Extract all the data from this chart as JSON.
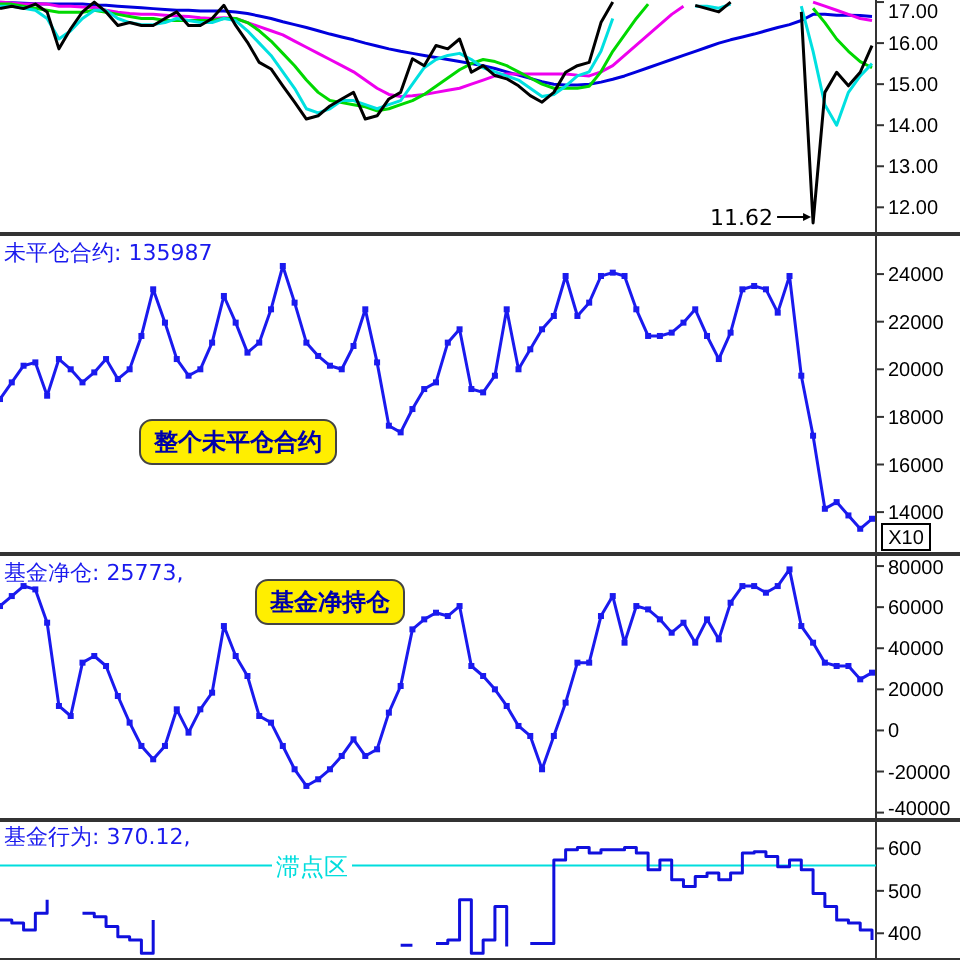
{
  "chart_data": [
    {
      "type": "line",
      "categories": [
        null,
        null,
        null,
        null,
        null,
        null,
        null,
        null,
        null,
        null,
        null,
        null,
        null,
        null,
        null,
        null,
        null,
        null,
        null,
        null,
        null,
        null,
        null,
        null,
        null,
        null,
        null,
        null,
        null,
        null,
        null,
        null,
        null,
        null,
        null,
        null,
        null,
        null,
        null,
        null,
        null,
        null,
        null,
        null,
        null,
        null,
        null,
        null,
        null,
        null,
        null,
        null,
        null,
        null,
        null,
        null,
        null,
        null,
        null,
        null,
        null,
        null,
        null,
        null,
        null,
        null,
        null,
        null,
        null,
        null,
        null,
        null,
        null,
        null,
        null
      ],
      "ylim": [
        11.35,
        17.05
      ],
      "yticks": [
        {
          "value": 12,
          "label": "12.00"
        },
        {
          "value": 13,
          "label": "13.00"
        },
        {
          "value": 14,
          "label": "14.00"
        },
        {
          "value": 15,
          "label": "15.00"
        },
        {
          "value": 16,
          "label": "16.00"
        },
        {
          "value": 17,
          "label": "17.00"
        }
      ],
      "tick_labels": "y",
      "marker": "none",
      "annotations": [
        "11.62"
      ],
      "series": [
        {
          "color": "#000000",
          "values": [
            16.84,
            16.9,
            16.84,
            16.95,
            16.76,
            15.86,
            16.35,
            16.76,
            17.0,
            16.76,
            16.43,
            16.5,
            16.43,
            16.43,
            16.6,
            16.76,
            16.43,
            16.43,
            16.6,
            16.92,
            16.43,
            16.02,
            15.53,
            15.37,
            14.96,
            14.56,
            14.15,
            14.23,
            14.47,
            14.64,
            14.8,
            14.15,
            14.23,
            14.64,
            14.8,
            15.62,
            15.45,
            15.94,
            15.86,
            16.1,
            15.29,
            15.45,
            15.21,
            15.13,
            14.96,
            14.72,
            14.56,
            14.8,
            15.29,
            15.45,
            15.53,
            16.5,
            17.0,
            null,
            null,
            null,
            null,
            null,
            null,
            16.92,
            16.84,
            16.76,
            17.0,
            null,
            null,
            null,
            null,
            null,
            16.76,
            11.62,
            14.8,
            15.29,
            14.96,
            15.29,
            15.94
          ]
        },
        {
          "color": "#00e0e0",
          "values": [
            16.9,
            16.9,
            16.85,
            16.8,
            16.6,
            16.1,
            16.3,
            16.6,
            16.8,
            16.8,
            16.6,
            16.5,
            16.45,
            16.45,
            16.5,
            16.6,
            16.55,
            16.5,
            16.5,
            16.6,
            16.55,
            16.3,
            16.0,
            15.7,
            15.3,
            14.9,
            14.4,
            14.3,
            14.4,
            14.6,
            14.6,
            14.5,
            14.4,
            14.5,
            14.6,
            15.0,
            15.4,
            15.6,
            15.7,
            15.75,
            15.6,
            15.4,
            15.3,
            15.2,
            15.1,
            14.9,
            14.7,
            14.75,
            14.95,
            15.2,
            15.3,
            15.8,
            16.6,
            null,
            null,
            null,
            null,
            null,
            null,
            16.9,
            16.9,
            16.85,
            16.95,
            null,
            null,
            null,
            null,
            null,
            16.9,
            15.8,
            14.5,
            14.0,
            14.8,
            15.2,
            15.5
          ]
        },
        {
          "color": "#00d800",
          "values": [
            16.95,
            16.95,
            16.9,
            16.85,
            16.8,
            16.75,
            16.75,
            16.75,
            16.8,
            16.75,
            16.7,
            16.65,
            16.6,
            16.6,
            16.55,
            16.55,
            16.55,
            16.55,
            16.55,
            16.6,
            16.6,
            16.5,
            16.3,
            16.05,
            15.75,
            15.45,
            15.1,
            14.8,
            14.6,
            14.55,
            14.5,
            14.45,
            14.35,
            14.4,
            14.5,
            14.6,
            14.75,
            14.95,
            15.15,
            15.35,
            15.5,
            15.6,
            15.55,
            15.45,
            15.3,
            15.15,
            15.0,
            14.9,
            14.9,
            14.9,
            14.95,
            15.3,
            15.8,
            16.2,
            16.6,
            16.95,
            null,
            null,
            null,
            null,
            null,
            null,
            null,
            null,
            null,
            null,
            null,
            null,
            null,
            16.85,
            16.5,
            16.1,
            15.8,
            15.55,
            15.4
          ]
        },
        {
          "color": "#ee00ee",
          "values": [
            17.0,
            16.98,
            16.95,
            16.95,
            16.95,
            16.9,
            16.9,
            16.88,
            16.87,
            16.8,
            16.75,
            16.72,
            16.7,
            16.7,
            16.68,
            16.66,
            16.65,
            16.62,
            16.6,
            16.62,
            16.6,
            16.5,
            16.4,
            16.3,
            16.2,
            16.05,
            15.9,
            15.75,
            15.6,
            15.45,
            15.3,
            15.1,
            14.9,
            14.75,
            14.7,
            14.72,
            14.75,
            14.8,
            14.85,
            14.9,
            15.0,
            15.1,
            15.2,
            15.25,
            15.25,
            15.25,
            15.25,
            15.25,
            15.25,
            15.22,
            15.2,
            15.3,
            15.45,
            15.7,
            15.95,
            16.2,
            16.45,
            16.7,
            16.9,
            null,
            null,
            null,
            null,
            null,
            null,
            null,
            null,
            null,
            null,
            17.0,
            16.9,
            16.8,
            16.7,
            16.6,
            16.55
          ]
        },
        {
          "color": "#0000dd",
          "values": [
            16.98,
            16.98,
            16.97,
            16.96,
            16.95,
            16.95,
            16.95,
            16.95,
            16.93,
            16.92,
            16.9,
            16.88,
            16.86,
            16.84,
            16.82,
            16.8,
            16.8,
            16.78,
            16.78,
            16.78,
            16.76,
            16.72,
            16.66,
            16.6,
            16.52,
            16.45,
            16.38,
            16.3,
            16.22,
            16.15,
            16.08,
            16.0,
            15.93,
            15.86,
            15.8,
            15.75,
            15.7,
            15.65,
            15.6,
            15.55,
            15.5,
            15.45,
            15.38,
            15.3,
            15.22,
            15.14,
            15.06,
            15.0,
            14.98,
            14.98,
            15.0,
            15.05,
            15.12,
            15.2,
            15.3,
            15.4,
            15.5,
            15.6,
            15.7,
            15.8,
            15.9,
            16.0,
            16.08,
            16.15,
            16.22,
            16.3,
            16.38,
            16.45,
            16.55,
            16.7,
            16.7,
            16.68,
            16.68,
            16.67,
            16.65
          ]
        }
      ]
    },
    {
      "type": "line",
      "title": "未平仓合约: 135987",
      "categories": [
        null,
        null,
        null,
        null,
        null,
        null,
        null,
        null,
        null,
        null,
        null,
        null,
        null,
        null,
        null,
        null,
        null,
        null,
        null,
        null,
        null,
        null,
        null,
        null,
        null,
        null,
        null,
        null,
        null,
        null,
        null,
        null,
        null,
        null,
        null,
        null,
        null,
        null,
        null,
        null,
        null,
        null,
        null,
        null,
        null,
        null,
        null,
        null,
        null,
        null,
        null,
        null,
        null,
        null,
        null,
        null,
        null,
        null,
        null,
        null,
        null,
        null,
        null,
        null,
        null,
        null,
        null,
        null,
        null,
        null,
        null,
        null,
        null,
        null,
        null
      ],
      "ylim": [
        12240,
        25600
      ],
      "yticks": [
        14000,
        16000,
        18000,
        20000,
        22000,
        24000
      ],
      "tick_labels": "y",
      "marker": "square",
      "annotations": [
        "整个未平仓合约",
        "X10"
      ],
      "series": [
        {
          "color": "#1a1aee",
          "values": [
            18750,
            19450,
            20150,
            20290,
            18890,
            20430,
            20000,
            19450,
            19870,
            20430,
            19590,
            20000,
            21400,
            23360,
            21960,
            20430,
            19730,
            20000,
            21120,
            23080,
            21960,
            20700,
            21120,
            22520,
            24340,
            22800,
            21120,
            20560,
            20150,
            20000,
            20980,
            22520,
            20290,
            17630,
            17350,
            18330,
            19170,
            19450,
            21120,
            21680,
            19170,
            19030,
            19730,
            22520,
            20000,
            20840,
            21680,
            22240,
            23920,
            22240,
            22800,
            23920,
            24060,
            23920,
            22520,
            21400,
            21400,
            21540,
            21960,
            22520,
            21400,
            20430,
            21540,
            23360,
            23500,
            23360,
            22380,
            23920,
            19730,
            17210,
            14140,
            14420,
            13860,
            13300,
            13720
          ]
        }
      ]
    },
    {
      "type": "line",
      "title": "基金净仓: 25773,",
      "categories": [
        null,
        null,
        null,
        null,
        null,
        null,
        null,
        null,
        null,
        null,
        null,
        null,
        null,
        null,
        null,
        null,
        null,
        null,
        null,
        null,
        null,
        null,
        null,
        null,
        null,
        null,
        null,
        null,
        null,
        null,
        null,
        null,
        null,
        null,
        null,
        null,
        null,
        null,
        null,
        null,
        null,
        null,
        null,
        null,
        null,
        null,
        null,
        null,
        null,
        null,
        null,
        null,
        null,
        null,
        null,
        null,
        null,
        null,
        null,
        null,
        null,
        null,
        null,
        null,
        null,
        null,
        null,
        null,
        null,
        null,
        null,
        null,
        null,
        null,
        null
      ],
      "ylim": [
        -43600,
        84900
      ],
      "yticks": [
        -40000,
        -20000,
        0,
        20000,
        40000,
        60000,
        80000
      ],
      "tick_labels": "y",
      "marker": "square",
      "annotations": [
        "基金净持仓"
      ],
      "series": [
        {
          "color": "#1a1aee",
          "values": [
            60540,
            65400,
            70270,
            68650,
            52430,
            11900,
            7030,
            32980,
            36220,
            31360,
            16760,
            3790,
            -7560,
            -14050,
            -7560,
            10270,
            -1080,
            10270,
            18380,
            50810,
            36220,
            26490,
            7030,
            3790,
            -7560,
            -18910,
            -27020,
            -23780,
            -18910,
            -12430,
            -4320,
            -12430,
            -9190,
            8650,
            21630,
            49190,
            54060,
            57300,
            55680,
            60540,
            31360,
            26490,
            20000,
            11900,
            2170,
            -2700,
            -18910,
            -2700,
            13520,
            32980,
            32980,
            55680,
            65400,
            42710,
            60540,
            58920,
            54060,
            47570,
            52430,
            42710,
            54060,
            44330,
            62160,
            70270,
            70270,
            67030,
            70270,
            78380,
            50810,
            42710,
            32980,
            31360,
            31360,
            24870,
            28110
          ]
        }
      ]
    },
    {
      "type": "step",
      "title": "基金行为: 370.12,",
      "categories": [
        null,
        null,
        null,
        null,
        null,
        null,
        null,
        null,
        null,
        null,
        null,
        null,
        null,
        null,
        null,
        null,
        null,
        null,
        null,
        null,
        null,
        null,
        null,
        null,
        null,
        null,
        null,
        null,
        null,
        null,
        null,
        null,
        null,
        null,
        null,
        null,
        null,
        null,
        null,
        null,
        null,
        null,
        null,
        null,
        null,
        null,
        null,
        null,
        null,
        null,
        null,
        null,
        null,
        null,
        null,
        null,
        null,
        null,
        null,
        null,
        null,
        null,
        null,
        null,
        null,
        null,
        null,
        null,
        null,
        null,
        null,
        null,
        null,
        null,
        null
      ],
      "ylim": [
        337,
        667
      ],
      "yticks": [
        400,
        500,
        600
      ],
      "tick_labels": "y",
      "marker": "none",
      "ref_lines": [
        {
          "axis": "y",
          "value": 560,
          "label": "滞点区",
          "color": "#00dddd"
        }
      ],
      "series": [
        {
          "color": "#1010dd",
          "values": [
            431,
            424,
            408,
            447,
            479,
            null,
            null,
            447,
            439,
            416,
            392,
            384,
            353,
            431,
            null,
            null,
            null,
            null,
            null,
            null,
            null,
            null,
            null,
            null,
            null,
            null,
            null,
            null,
            null,
            null,
            null,
            null,
            null,
            null,
            372,
            372,
            null,
            376,
            384,
            479,
            353,
            384,
            463,
            369,
            null,
            376,
            376,
            573,
            597,
            602,
            589,
            597,
            597,
            602,
            589,
            550,
            573,
            526,
            510,
            534,
            542,
            526,
            542,
            589,
            592,
            581,
            557,
            573,
            550,
            494,
            463,
            431,
            424,
            408,
            384
          ]
        }
      ]
    }
  ]
}
